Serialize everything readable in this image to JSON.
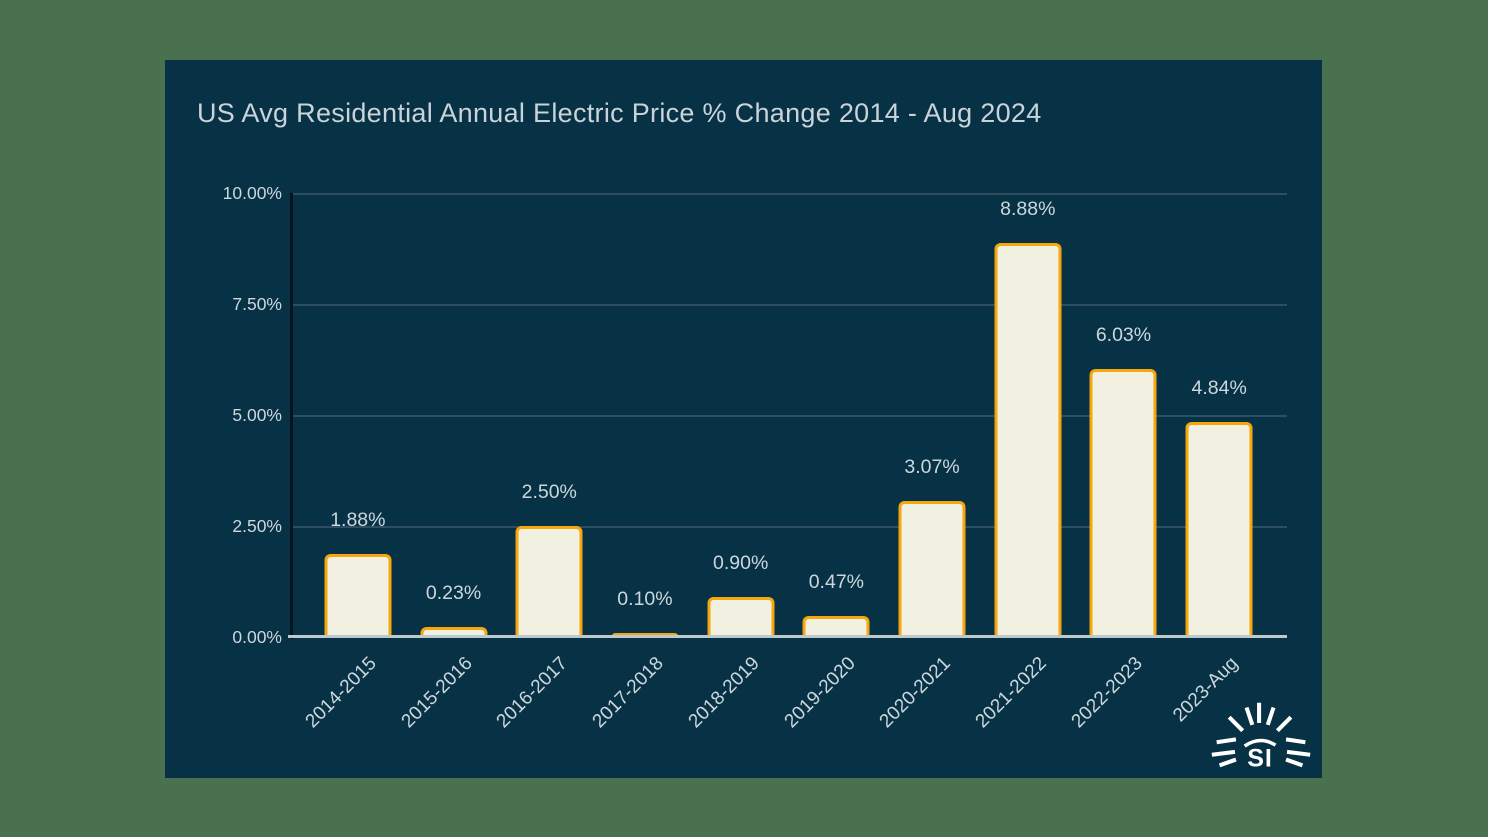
{
  "page": {
    "outer_background": "#49704f",
    "panel_background": "#073245"
  },
  "chart_data": {
    "type": "bar",
    "title": "US Avg Residential Annual Electric Price % Change 2014 - Aug 2024",
    "categories": [
      "2014-2015",
      "2015-2016",
      "2016-2017",
      "2017-2018",
      "2018-2019",
      "2019-2020",
      "2020-2021",
      "2021-2022",
      "2022-2023",
      "2023-Aug"
    ],
    "values": [
      1.88,
      0.23,
      2.5,
      0.1,
      0.9,
      0.47,
      3.07,
      8.88,
      6.03,
      4.84
    ],
    "bar_labels": [
      "1.88%",
      "0.23%",
      "2.50%",
      "0.10%",
      "0.90%",
      "0.47%",
      "3.07%",
      "8.88%",
      "6.03%",
      "4.84%"
    ],
    "xlabel": "",
    "ylabel": "",
    "ylim": [
      0,
      10
    ],
    "yticks": [
      {
        "value": 0,
        "label": "0.00%"
      },
      {
        "value": 2.5,
        "label": "2.50%"
      },
      {
        "value": 5,
        "label": "5.00%"
      },
      {
        "value": 7.5,
        "label": "7.50%"
      },
      {
        "value": 10,
        "label": "10.00%"
      }
    ],
    "grid": true,
    "legend_position": "none",
    "colors": {
      "bar_fill": "#f2f0e0",
      "bar_border": "#f5a70c",
      "gridline": "#2d4f61",
      "axis_line": "#06141c",
      "baseline": "#bdc9cf",
      "title_text": "#c9d3d9",
      "label_text": "#ccd7dd"
    }
  },
  "logo": {
    "text": "SI"
  }
}
